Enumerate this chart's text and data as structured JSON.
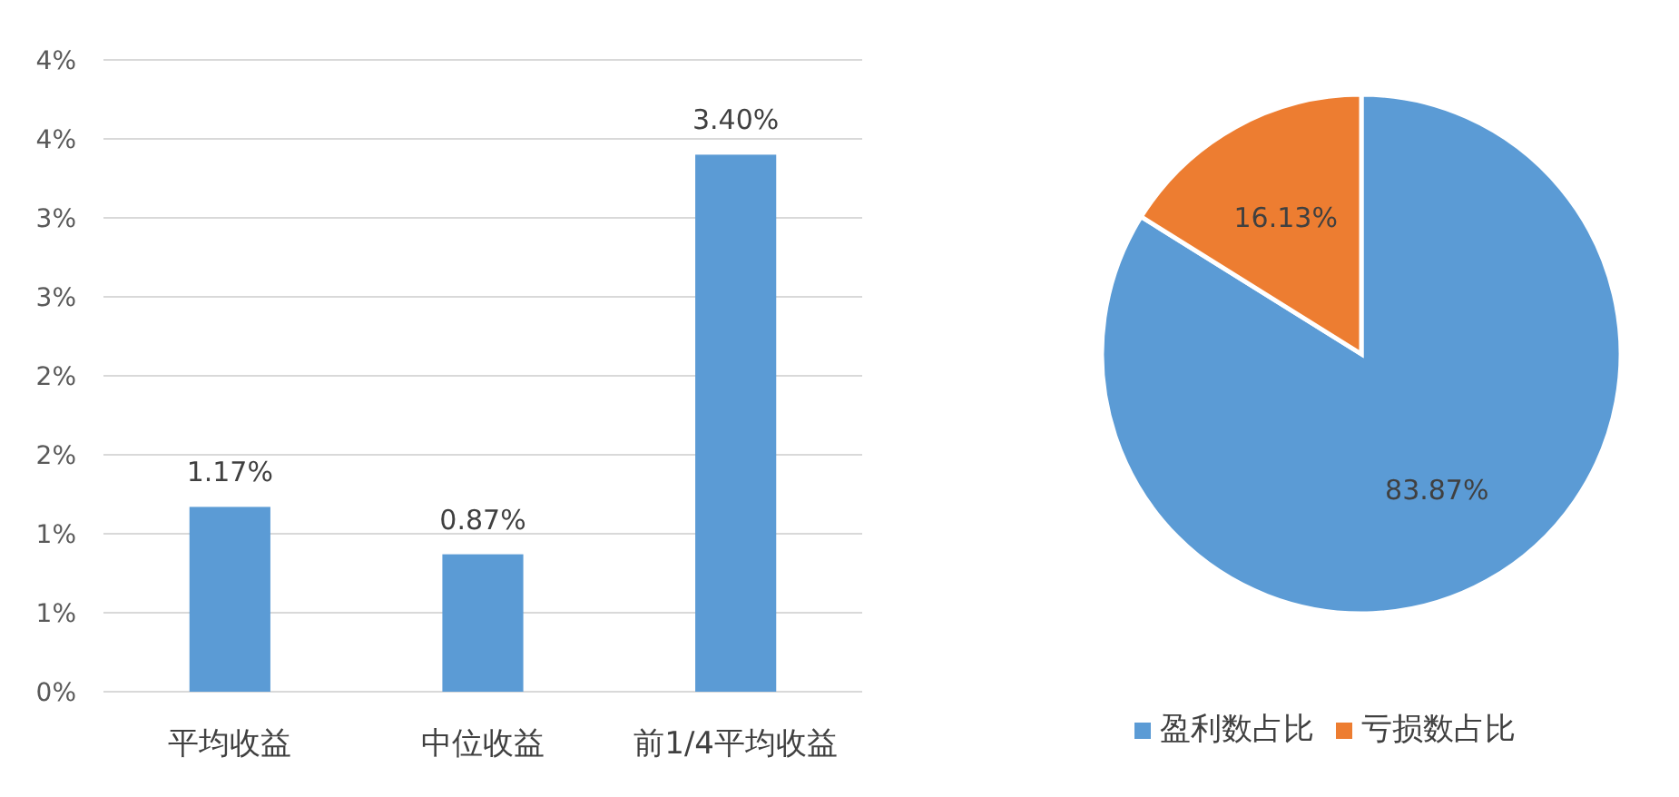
{
  "chart_data": [
    {
      "type": "bar",
      "categories": [
        "平均收益",
        "中位收益",
        "前1/4平均收益"
      ],
      "values": [
        1.17,
        0.87,
        3.4
      ],
      "value_labels": [
        "1.17%",
        "0.87%",
        "3.40%"
      ],
      "color": "#5b9bd5",
      "ylim": [
        0,
        4
      ],
      "yticks": [
        {
          "value": 0,
          "label": "0%"
        },
        {
          "value": 0.5,
          "label": "1%"
        },
        {
          "value": 1,
          "label": "1%"
        },
        {
          "value": 1.5,
          "label": "2%"
        },
        {
          "value": 2,
          "label": "2%"
        },
        {
          "value": 2.5,
          "label": "3%"
        },
        {
          "value": 3,
          "label": "3%"
        },
        {
          "value": 3.5,
          "label": "4%"
        },
        {
          "value": 4,
          "label": "4%"
        }
      ],
      "grid": "y"
    },
    {
      "type": "pie",
      "categories": [
        "盈利数占比",
        "亏损数占比"
      ],
      "values": [
        83.87,
        16.13
      ],
      "value_labels": [
        "83.87%",
        "16.13%"
      ],
      "colors": [
        "#5b9bd5",
        "#ed7d31"
      ],
      "legend": "bottom"
    }
  ]
}
